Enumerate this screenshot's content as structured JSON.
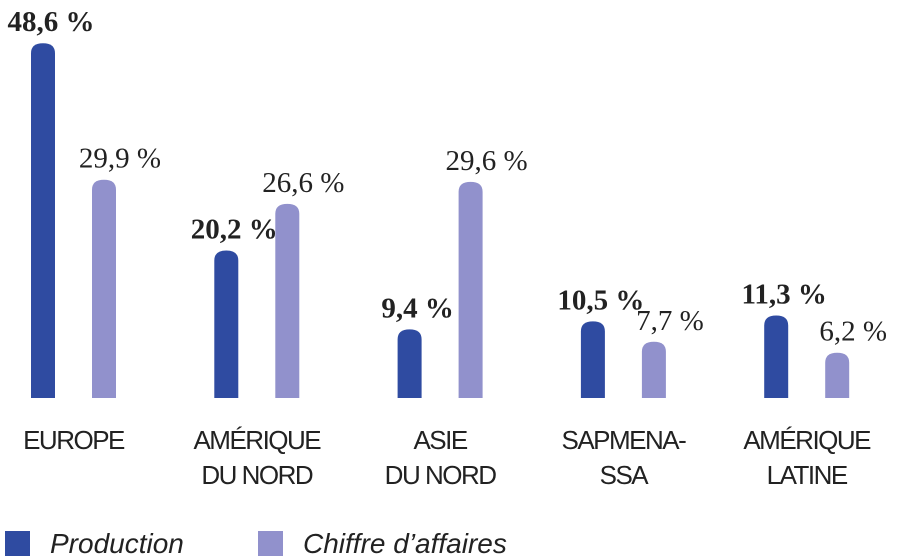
{
  "chart_data": {
    "type": "bar",
    "categories": [
      [
        "EUROPE"
      ],
      [
        "AMÉRIQUE",
        "DU NORD"
      ],
      [
        "ASIE",
        "DU NORD"
      ],
      [
        "SAPMENA-",
        "SSA"
      ],
      [
        "AMÉRIQUE",
        "LATINE"
      ]
    ],
    "series": [
      {
        "name": "Production",
        "color": "#2f4ba1",
        "values": [
          48.6,
          20.2,
          9.4,
          10.5,
          11.3
        ],
        "value_labels": [
          "48,6 %",
          "20,2 %",
          "9,4 %",
          "10,5 %",
          "11,3 %"
        ]
      },
      {
        "name": "Chiffre d’affaires",
        "color": "#9191cc",
        "values": [
          29.9,
          26.6,
          29.6,
          7.7,
          6.2
        ],
        "value_labels": [
          "29,9 %",
          "26,6 %",
          "29,6 %",
          "7,7 %",
          "6,2 %"
        ]
      }
    ],
    "legend": "bottom-left"
  }
}
